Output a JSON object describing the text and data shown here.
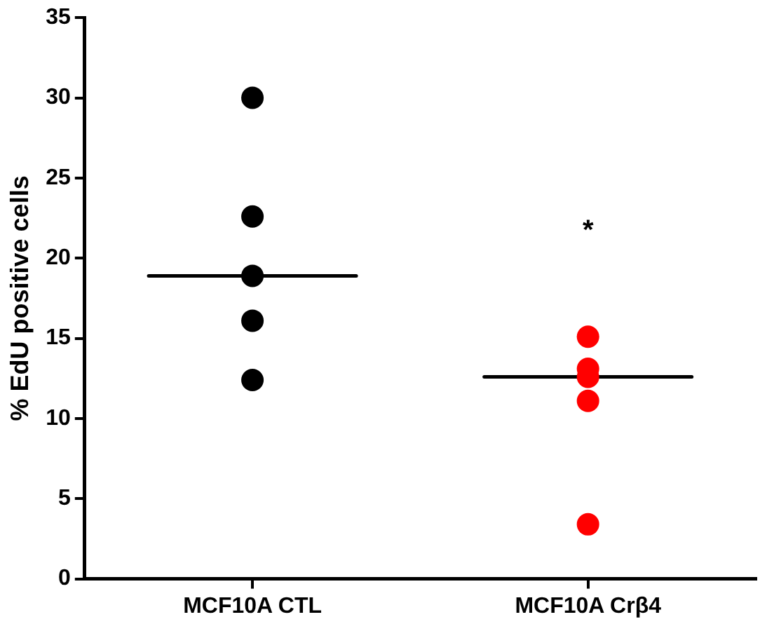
{
  "chart_data": {
    "type": "scatter",
    "ylabel": "% EdU positive cells",
    "categories": [
      "MCF10A CTL",
      "MCF10A Crβ4"
    ],
    "ylim": [
      0,
      35
    ],
    "yticks": [
      0,
      5,
      10,
      15,
      20,
      25,
      30,
      35
    ],
    "grid": false,
    "legend": false,
    "marker": "circle",
    "series": [
      {
        "color": "#000000",
        "x": [
          "MCF10A CTL",
          "MCF10A CTL",
          "MCF10A CTL",
          "MCF10A CTL",
          "MCF10A CTL"
        ],
        "values": [
          30.0,
          22.6,
          18.9,
          16.1,
          12.4
        ]
      },
      {
        "color": "#ff0000",
        "x": [
          "MCF10A Crβ4",
          "MCF10A Crβ4",
          "MCF10A Crβ4",
          "MCF10A Crβ4",
          "MCF10A Crβ4"
        ],
        "values": [
          15.1,
          12.6,
          13.1,
          11.1,
          3.4
        ]
      },
      {
        "type": "box",
        "color": "#000000",
        "boxes": [
          {
            "low": 18.9,
            "q1": 18.9,
            "median": 18.9,
            "q3": 18.9,
            "high": 18.9
          },
          {
            "low": 12.6,
            "q1": 12.6,
            "median": 12.6,
            "q3": 12.6,
            "high": 12.6
          }
        ]
      }
    ],
    "annotations": [
      "*"
    ]
  }
}
